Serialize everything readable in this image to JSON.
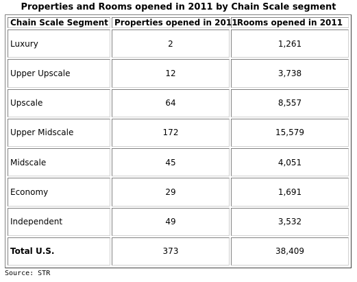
{
  "chart_data": {
    "type": "table",
    "title": "Properties and Rooms opened in 2011 by Chain Scale segment",
    "columns": [
      "Chain Scale Segment",
      "Properties opened in 2011",
      "Rooms opened in 2011"
    ],
    "rows": [
      {
        "segment": "Luxury",
        "properties": "2",
        "rooms": "1,261"
      },
      {
        "segment": "Upper Upscale",
        "properties": "12",
        "rooms": "3,738"
      },
      {
        "segment": "Upscale",
        "properties": "64",
        "rooms": "8,557"
      },
      {
        "segment": "Upper Midscale",
        "properties": "172",
        "rooms": "15,579"
      },
      {
        "segment": "Midscale",
        "properties": "45",
        "rooms": "4,051"
      },
      {
        "segment": "Economy",
        "properties": "29",
        "rooms": "1,691"
      },
      {
        "segment": "Independent",
        "properties": "49",
        "rooms": "3,532"
      }
    ],
    "total": {
      "segment": "Total U.S.",
      "properties": "373",
      "rooms": "38,409"
    },
    "source": "Source: STR"
  }
}
